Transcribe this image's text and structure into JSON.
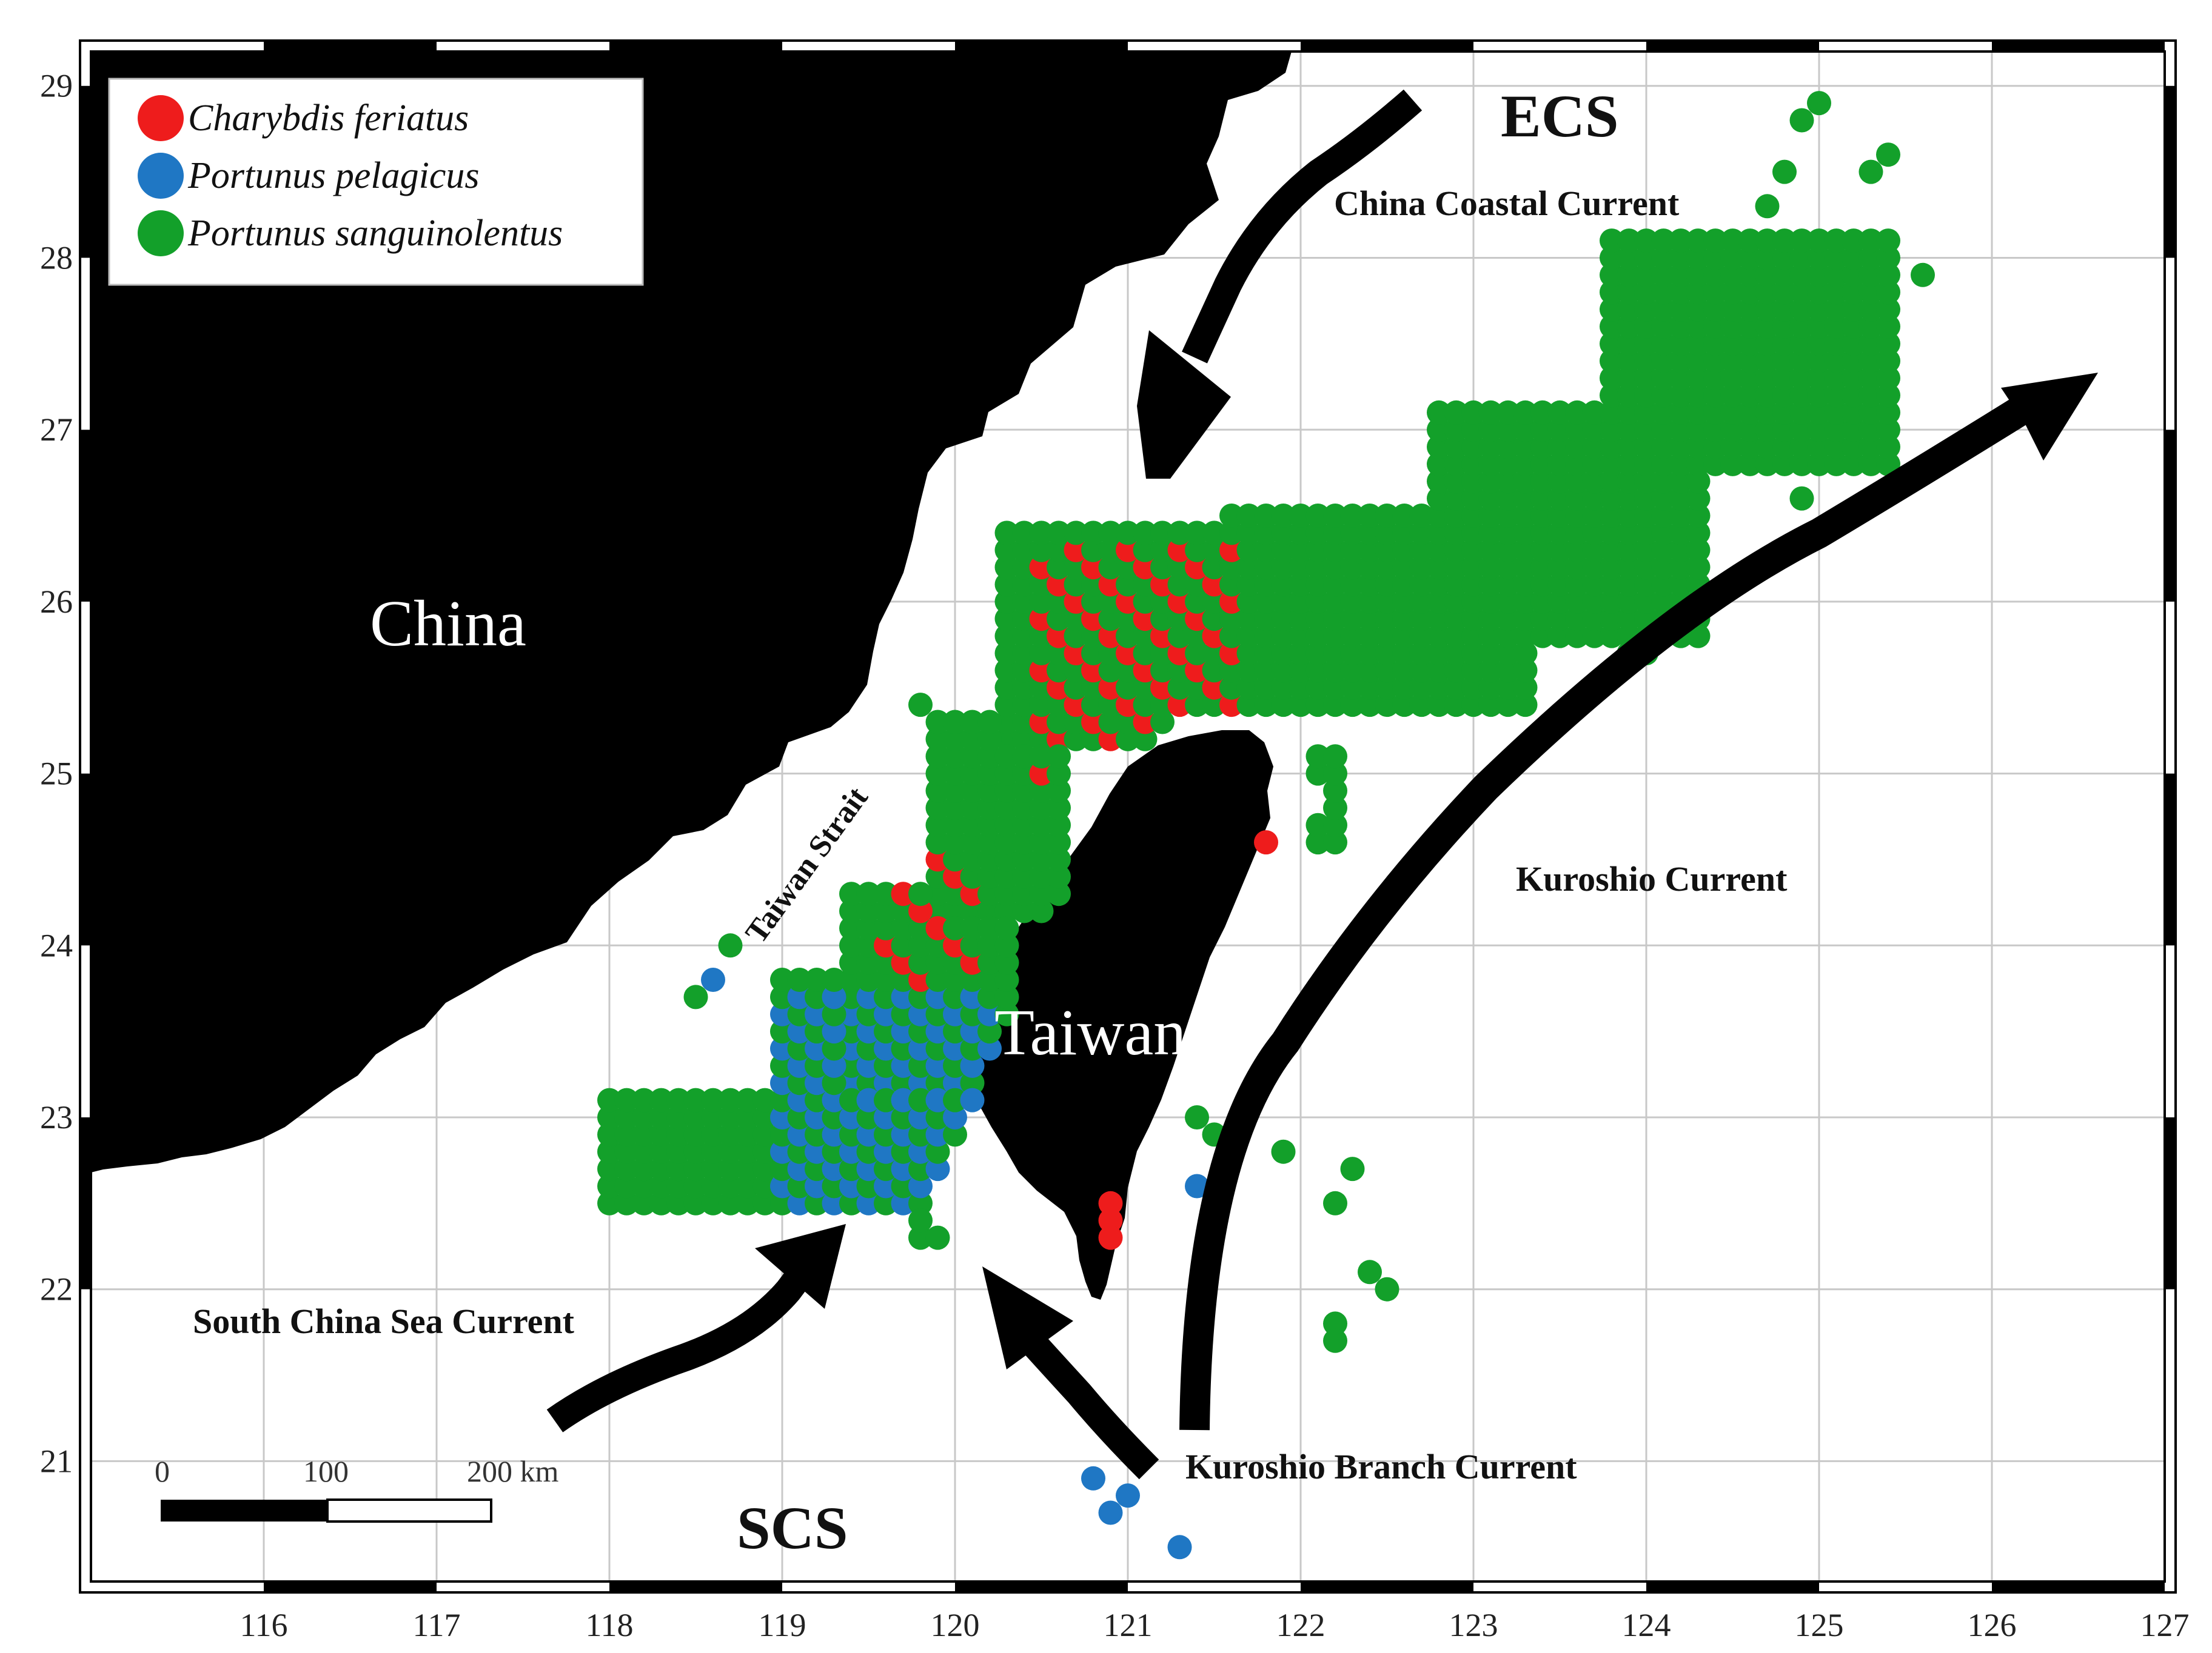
{
  "map": {
    "lon_range": [
      115,
      127
    ],
    "lat_range": [
      20.3,
      29.2
    ],
    "lon_ticks": [
      116,
      117,
      118,
      119,
      120,
      121,
      122,
      123,
      124,
      125,
      126,
      127
    ],
    "lat_ticks": [
      21,
      22,
      23,
      24,
      25,
      26,
      27,
      28,
      29
    ],
    "grid": true
  },
  "labels": {
    "china": "China",
    "taiwan": "Taiwan",
    "taiwan_strait": "Taiwan Strait",
    "ecs": "ECS",
    "scs": "SCS",
    "china_coastal_current": "China Coastal Current",
    "kuroshio_current": "Kuroshio Current",
    "south_china_sea_current": "South China Sea Current",
    "kuroshio_branch_current": "Kuroshio Branch Current"
  },
  "legend": {
    "position": "top-left",
    "items": [
      {
        "label": "Charybdis feriatus",
        "color": "#ee1c1c"
      },
      {
        "label": "Portunus pelagicus",
        "color": "#1f77c4"
      },
      {
        "label": "Portunus sanguinolentus",
        "color": "#13a02a"
      }
    ]
  },
  "scale_bar": {
    "labels": [
      "0",
      "100",
      "200 km"
    ]
  },
  "colors": {
    "land": "#000000",
    "sea": "#ffffff",
    "grid": "#c8c8c8",
    "arrow": "#000000"
  }
}
